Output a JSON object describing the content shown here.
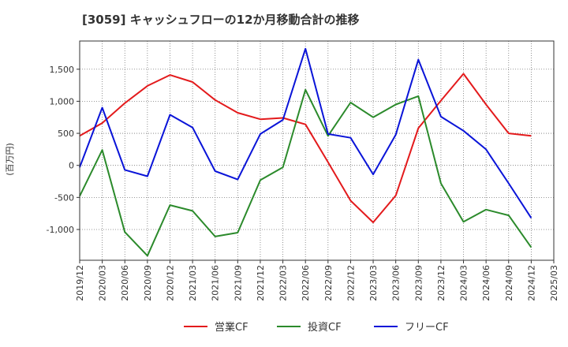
{
  "chart_data": {
    "type": "line",
    "title": "[3059]  キャッシュフローの12か月移動合計の推移",
    "ylabel": "(百万円)",
    "xlabel": "",
    "grid": true,
    "legend_position": "bottom-center",
    "ylim": [
      -1480,
      1940
    ],
    "yticks": [
      1500,
      1000,
      500,
      0,
      -500,
      -1000
    ],
    "ytick_labels": [
      "1,500",
      "1,000",
      "500",
      "0",
      "-500",
      "-1,000"
    ],
    "categories": [
      "2019/12",
      "2020/03",
      "2020/06",
      "2020/09",
      "2020/12",
      "2021/03",
      "2021/06",
      "2021/09",
      "2021/12",
      "2022/03",
      "2022/06",
      "2022/09",
      "2022/12",
      "2023/03",
      "2023/06",
      "2023/09",
      "2023/12",
      "2024/03",
      "2024/06",
      "2024/09",
      "2024/12",
      "2025/03"
    ],
    "series": [
      {
        "name": "営業CF",
        "color": "#e31a1c",
        "values": [
          460,
          660,
          970,
          1240,
          1410,
          1300,
          1020,
          820,
          720,
          740,
          640,
          50,
          -550,
          -890,
          -470,
          580,
          1010,
          1430,
          950,
          500,
          460,
          null
        ]
      },
      {
        "name": "投資CF",
        "color": "#2b8a2b",
        "values": [
          -480,
          240,
          -1040,
          -1410,
          -620,
          -710,
          -1110,
          -1050,
          -230,
          -30,
          1180,
          460,
          980,
          750,
          950,
          1080,
          -280,
          -880,
          -690,
          -780,
          -1280,
          null
        ]
      },
      {
        "name": "フリーCF",
        "color": "#0a14d8",
        "values": [
          -30,
          900,
          -70,
          -170,
          790,
          590,
          -90,
          -220,
          490,
          710,
          1820,
          490,
          430,
          -140,
          480,
          1650,
          760,
          540,
          250,
          -280,
          -820,
          null
        ]
      }
    ]
  }
}
